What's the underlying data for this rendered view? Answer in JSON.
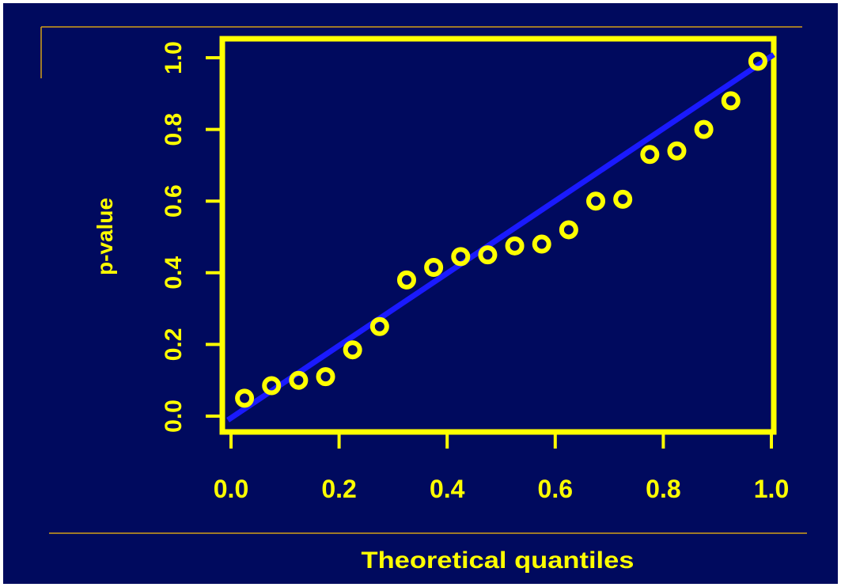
{
  "colors": {
    "background": "#000a5e",
    "frame": "#ffff00",
    "points": "#ffff00",
    "line": "#1a1aff",
    "text": "#ffff00",
    "slide_rule": "#d4a017"
  },
  "chart_data": {
    "type": "scatter",
    "title": "",
    "xlabel": "Theoretical quantiles",
    "ylabel": "p-value",
    "xlim": [
      0.0,
      1.0
    ],
    "ylim": [
      0.0,
      1.0
    ],
    "x_ticks": [
      "0.0",
      "0.2",
      "0.4",
      "0.6",
      "0.8",
      "1.0"
    ],
    "y_ticks": [
      "0.0",
      "0.2",
      "0.4",
      "0.6",
      "0.8",
      "1.0"
    ],
    "grid": false,
    "legend": "none",
    "series": [
      {
        "x": [
          0.025,
          0.075,
          0.125,
          0.175,
          0.225,
          0.275,
          0.325,
          0.375,
          0.425,
          0.475,
          0.525,
          0.575,
          0.625,
          0.675,
          0.725,
          0.775,
          0.825,
          0.875,
          0.925,
          0.975
        ],
        "y": [
          0.05,
          0.085,
          0.1,
          0.11,
          0.185,
          0.25,
          0.38,
          0.415,
          0.445,
          0.45,
          0.475,
          0.48,
          0.52,
          0.6,
          0.605,
          0.73,
          0.74,
          0.8,
          0.88,
          0.99
        ]
      }
    ],
    "reference_line": {
      "x": [
        0.0,
        1.0
      ],
      "y": [
        0.0,
        1.0
      ]
    }
  }
}
